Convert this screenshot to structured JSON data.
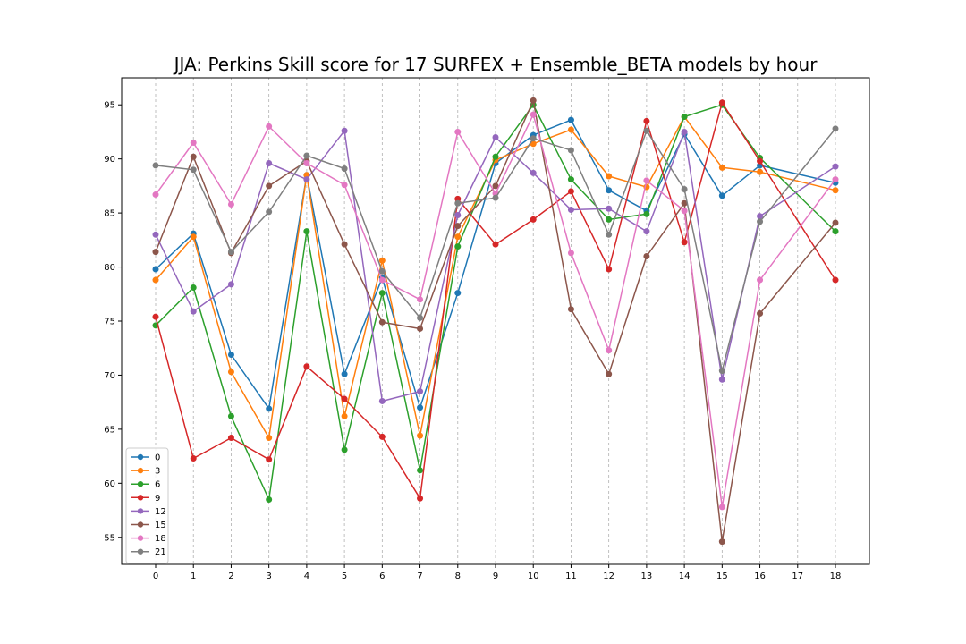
{
  "chart_data": {
    "type": "line",
    "title": "JJA: Perkins Skill score for 17 SURFEX + Ensemble_BETA models by hour",
    "xlabel": "",
    "ylabel": "",
    "xlim": [
      -0.9,
      18.9
    ],
    "ylim": [
      52.5,
      97.5
    ],
    "x": [
      0,
      1,
      2,
      3,
      4,
      5,
      6,
      7,
      8,
      9,
      10,
      11,
      12,
      13,
      14,
      15,
      16,
      17,
      18
    ],
    "x_ticks": [
      "0",
      "1",
      "2",
      "3",
      "4",
      "5",
      "6",
      "7",
      "8",
      "9",
      "10",
      "11",
      "12",
      "13",
      "14",
      "15",
      "16",
      "17",
      "18"
    ],
    "y_ticks": [
      55,
      60,
      65,
      70,
      75,
      80,
      85,
      90,
      95
    ],
    "grid": "vertical dashed",
    "legend_position": "lower-left",
    "series": [
      {
        "name": "0",
        "color": "#1f77b4",
        "points": [
          [
            0,
            79.8
          ],
          [
            1,
            83.1
          ],
          [
            2,
            71.9
          ],
          [
            3,
            66.9
          ],
          [
            4,
            88.5
          ],
          [
            5,
            70.1
          ],
          [
            6,
            79.0
          ],
          [
            7,
            67.0
          ],
          [
            8,
            77.6
          ],
          [
            9,
            89.6
          ],
          [
            10,
            92.2
          ],
          [
            11,
            93.6
          ],
          [
            12,
            87.1
          ],
          [
            13,
            85.2
          ],
          [
            14,
            92.3
          ],
          [
            15,
            86.6
          ],
          [
            16,
            89.4
          ],
          [
            18,
            87.8
          ]
        ]
      },
      {
        "name": "3",
        "color": "#ff7f0e",
        "points": [
          [
            0,
            78.8
          ],
          [
            1,
            82.8
          ],
          [
            2,
            70.3
          ],
          [
            3,
            64.2
          ],
          [
            4,
            88.5
          ],
          [
            5,
            66.2
          ],
          [
            6,
            80.6
          ],
          [
            7,
            64.4
          ],
          [
            8,
            82.8
          ],
          [
            9,
            89.9
          ],
          [
            10,
            91.4
          ],
          [
            11,
            92.7
          ],
          [
            12,
            88.4
          ],
          [
            13,
            87.4
          ],
          [
            14,
            93.9
          ],
          [
            15,
            89.2
          ],
          [
            16,
            88.8
          ],
          [
            18,
            87.1
          ]
        ]
      },
      {
        "name": "6",
        "color": "#2ca02c",
        "points": [
          [
            0,
            74.6
          ],
          [
            1,
            78.1
          ],
          [
            2,
            66.2
          ],
          [
            3,
            58.5
          ],
          [
            4,
            83.3
          ],
          [
            5,
            63.1
          ],
          [
            6,
            77.6
          ],
          [
            7,
            61.2
          ],
          [
            8,
            81.9
          ],
          [
            9,
            90.2
          ],
          [
            10,
            95.0
          ],
          [
            11,
            88.1
          ],
          [
            12,
            84.4
          ],
          [
            13,
            84.9
          ],
          [
            14,
            93.9
          ],
          [
            15,
            95.0
          ],
          [
            16,
            90.1
          ],
          [
            18,
            83.3
          ]
        ]
      },
      {
        "name": "9",
        "color": "#d62728",
        "points": [
          [
            0,
            75.4
          ],
          [
            1,
            62.3
          ],
          [
            2,
            64.2
          ],
          [
            3,
            62.2
          ],
          [
            4,
            70.8
          ],
          [
            5,
            67.8
          ],
          [
            6,
            64.3
          ],
          [
            7,
            58.6
          ],
          [
            8,
            86.3
          ],
          [
            9,
            82.1
          ],
          [
            10,
            84.4
          ],
          [
            11,
            87.0
          ],
          [
            12,
            79.8
          ],
          [
            13,
            93.5
          ],
          [
            14,
            82.3
          ],
          [
            15,
            95.2
          ],
          [
            16,
            89.8
          ],
          [
            18,
            78.8
          ]
        ]
      },
      {
        "name": "12",
        "color": "#9467bd",
        "points": [
          [
            0,
            83.0
          ],
          [
            1,
            75.9
          ],
          [
            2,
            78.4
          ],
          [
            3,
            89.6
          ],
          [
            4,
            88.1
          ],
          [
            5,
            92.6
          ],
          [
            6,
            67.6
          ],
          [
            7,
            68.5
          ],
          [
            8,
            84.8
          ],
          [
            9,
            92.0
          ],
          [
            10,
            88.7
          ],
          [
            11,
            85.3
          ],
          [
            12,
            85.4
          ],
          [
            13,
            83.3
          ],
          [
            14,
            92.5
          ],
          [
            15,
            69.6
          ],
          [
            16,
            84.7
          ],
          [
            18,
            89.3
          ]
        ]
      },
      {
        "name": "15",
        "color": "#8c564b",
        "points": [
          [
            0,
            81.4
          ],
          [
            1,
            90.2
          ],
          [
            2,
            81.3
          ],
          [
            3,
            87.5
          ],
          [
            4,
            89.8
          ],
          [
            5,
            82.1
          ],
          [
            6,
            74.9
          ],
          [
            7,
            74.3
          ],
          [
            8,
            83.8
          ],
          [
            9,
            87.5
          ],
          [
            10,
            95.4
          ],
          [
            11,
            76.1
          ],
          [
            12,
            70.1
          ],
          [
            13,
            81.0
          ],
          [
            14,
            85.9
          ],
          [
            15,
            54.6
          ],
          [
            16,
            75.7
          ],
          [
            18,
            84.1
          ]
        ]
      },
      {
        "name": "18",
        "color": "#e377c2",
        "points": [
          [
            0,
            86.7
          ],
          [
            1,
            91.5
          ],
          [
            2,
            85.8
          ],
          [
            3,
            93.0
          ],
          [
            4,
            89.6
          ],
          [
            5,
            87.6
          ],
          [
            6,
            78.8
          ],
          [
            7,
            77.0
          ],
          [
            8,
            92.5
          ],
          [
            9,
            86.8
          ],
          [
            10,
            94.1
          ],
          [
            11,
            81.3
          ],
          [
            12,
            72.3
          ],
          [
            13,
            88.0
          ],
          [
            14,
            85.2
          ],
          [
            15,
            57.8
          ],
          [
            16,
            78.8
          ],
          [
            18,
            88.1
          ]
        ]
      },
      {
        "name": "21",
        "color": "#7f7f7f",
        "points": [
          [
            0,
            89.4
          ],
          [
            1,
            89.0
          ],
          [
            2,
            81.4
          ],
          [
            3,
            85.1
          ],
          [
            4,
            90.3
          ],
          [
            5,
            89.1
          ],
          [
            6,
            79.6
          ],
          [
            7,
            75.3
          ],
          [
            8,
            85.9
          ],
          [
            9,
            86.4
          ],
          [
            10,
            91.9
          ],
          [
            11,
            90.8
          ],
          [
            12,
            83.0
          ],
          [
            13,
            92.6
          ],
          [
            14,
            87.2
          ],
          [
            15,
            70.4
          ],
          [
            16,
            84.2
          ],
          [
            18,
            92.8
          ]
        ]
      }
    ]
  }
}
